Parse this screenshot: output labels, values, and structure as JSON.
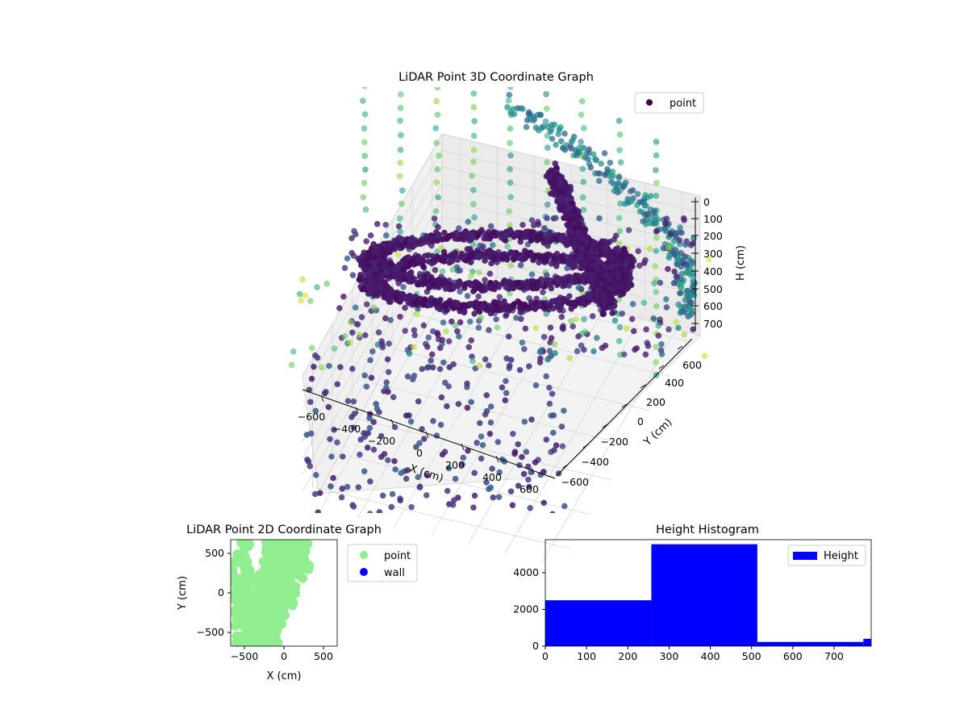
{
  "chart_data": [
    {
      "type": "scatter3d",
      "title": "LiDAR Point 3D Coordinate Graph",
      "xlabel": "X (cm)",
      "ylabel": "Y (cm)",
      "zlabel": "H (cm)",
      "xticks": [
        "−600",
        "−400",
        "−200",
        "0",
        "200",
        "400",
        "600"
      ],
      "yticks": [
        "−600",
        "−400",
        "−200",
        "0",
        "200",
        "400",
        "600"
      ],
      "zticks": [
        "0",
        "100",
        "200",
        "300",
        "400",
        "500",
        "600",
        "700"
      ],
      "xlim": [
        -700,
        700
      ],
      "ylim": [
        -700,
        700
      ],
      "zlim": [
        0,
        780
      ],
      "zaxis_inverted": true,
      "colormap": "viridis",
      "legend": {
        "position": "top-right",
        "entries": [
          {
            "label": "point",
            "color": "#440154"
          }
        ]
      },
      "grid": true
    },
    {
      "type": "scatter",
      "title": "LiDAR Point 2D Coordinate Graph",
      "xlabel": "X (cm)",
      "ylabel": "Y (cm)",
      "xticks": [
        "−500",
        "0",
        "500"
      ],
      "yticks": [
        "500",
        "0",
        "−500"
      ],
      "xlim": [
        -680,
        680
      ],
      "ylim": [
        -680,
        680
      ],
      "series": [
        {
          "name": "point",
          "color": "#90ee90"
        },
        {
          "name": "wall",
          "color": "#0000ff"
        }
      ],
      "legend": {
        "position": "right-outside"
      },
      "grid": false
    },
    {
      "type": "bar",
      "title": "Height Histogram",
      "xlabel": "",
      "ylabel": "",
      "xticks": [
        "0",
        "100",
        "200",
        "300",
        "400",
        "500",
        "600",
        "700"
      ],
      "yticks": [
        "0",
        "2000",
        "4000"
      ],
      "xlim": [
        0,
        790
      ],
      "ylim": [
        0,
        5800
      ],
      "bins": [
        {
          "x0": 0,
          "x1": 257,
          "count": 2500
        },
        {
          "x0": 257,
          "x1": 514,
          "count": 5550
        },
        {
          "x0": 514,
          "x1": 771,
          "count": 230
        },
        {
          "x0": 771,
          "x1": 790,
          "count": 400
        }
      ],
      "color": "#0000ff",
      "legend": {
        "position": "top-right",
        "entries": [
          {
            "label": "Height",
            "color": "#0000ff"
          }
        ]
      },
      "grid": false
    }
  ]
}
